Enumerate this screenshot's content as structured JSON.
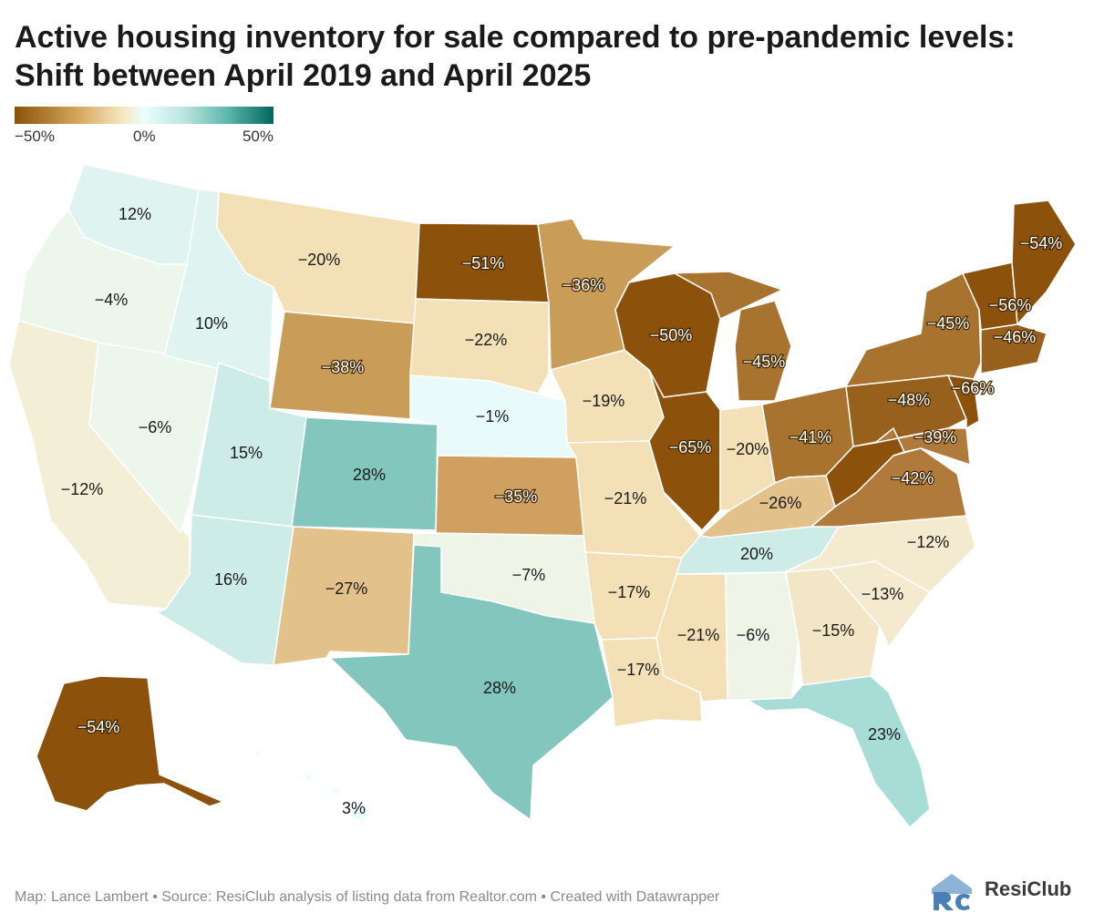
{
  "title": "Active housing inventory for sale compared to pre-pandemic levels: Shift between April 2019 and April 2025",
  "legend": {
    "min_label": "−50%",
    "mid_label": "0%",
    "max_label": "50%",
    "colors": [
      "#8c510a",
      "#d7a85e",
      "#f6e8c3",
      "#eafefd",
      "#5fb7ac",
      "#01665e"
    ]
  },
  "footer": "Map: Lance Lambert • Source: ResiClub analysis of listing data from Realtor.com • Created with Datawrapper",
  "brand": "ResiClub",
  "states": {
    "WA": "12%",
    "OR": "−4%",
    "CA": "−12%",
    "ID": "10%",
    "NV": "−6%",
    "MT": "−20%",
    "WY": "−38%",
    "UT": "15%",
    "AZ": "16%",
    "CO": "28%",
    "NM": "−27%",
    "ND": "−51%",
    "SD": "−22%",
    "NE": "−1%",
    "KS": "−35%",
    "OK": "−7%",
    "TX": "28%",
    "MN": "−36%",
    "IA": "−19%",
    "MO": "−21%",
    "AR": "−17%",
    "LA": "−17%",
    "WI": "−50%",
    "IL": "−65%",
    "MI": "−45%",
    "IN": "−20%",
    "OH": "−41%",
    "KY": "−26%",
    "TN": "20%",
    "MS": "−21%",
    "AL": "−6%",
    "GA": "−15%",
    "FL": "23%",
    "SC": "−13%",
    "NC": "−12%",
    "VA": "−42%",
    "WV": "−39%",
    "PA": "−48%",
    "NY": "−45%",
    "NJ": "−66%",
    "VT": "−56%",
    "ME": "−54%",
    "MA": "−46%",
    "AK": "−54%",
    "HI": "3%"
  }
}
